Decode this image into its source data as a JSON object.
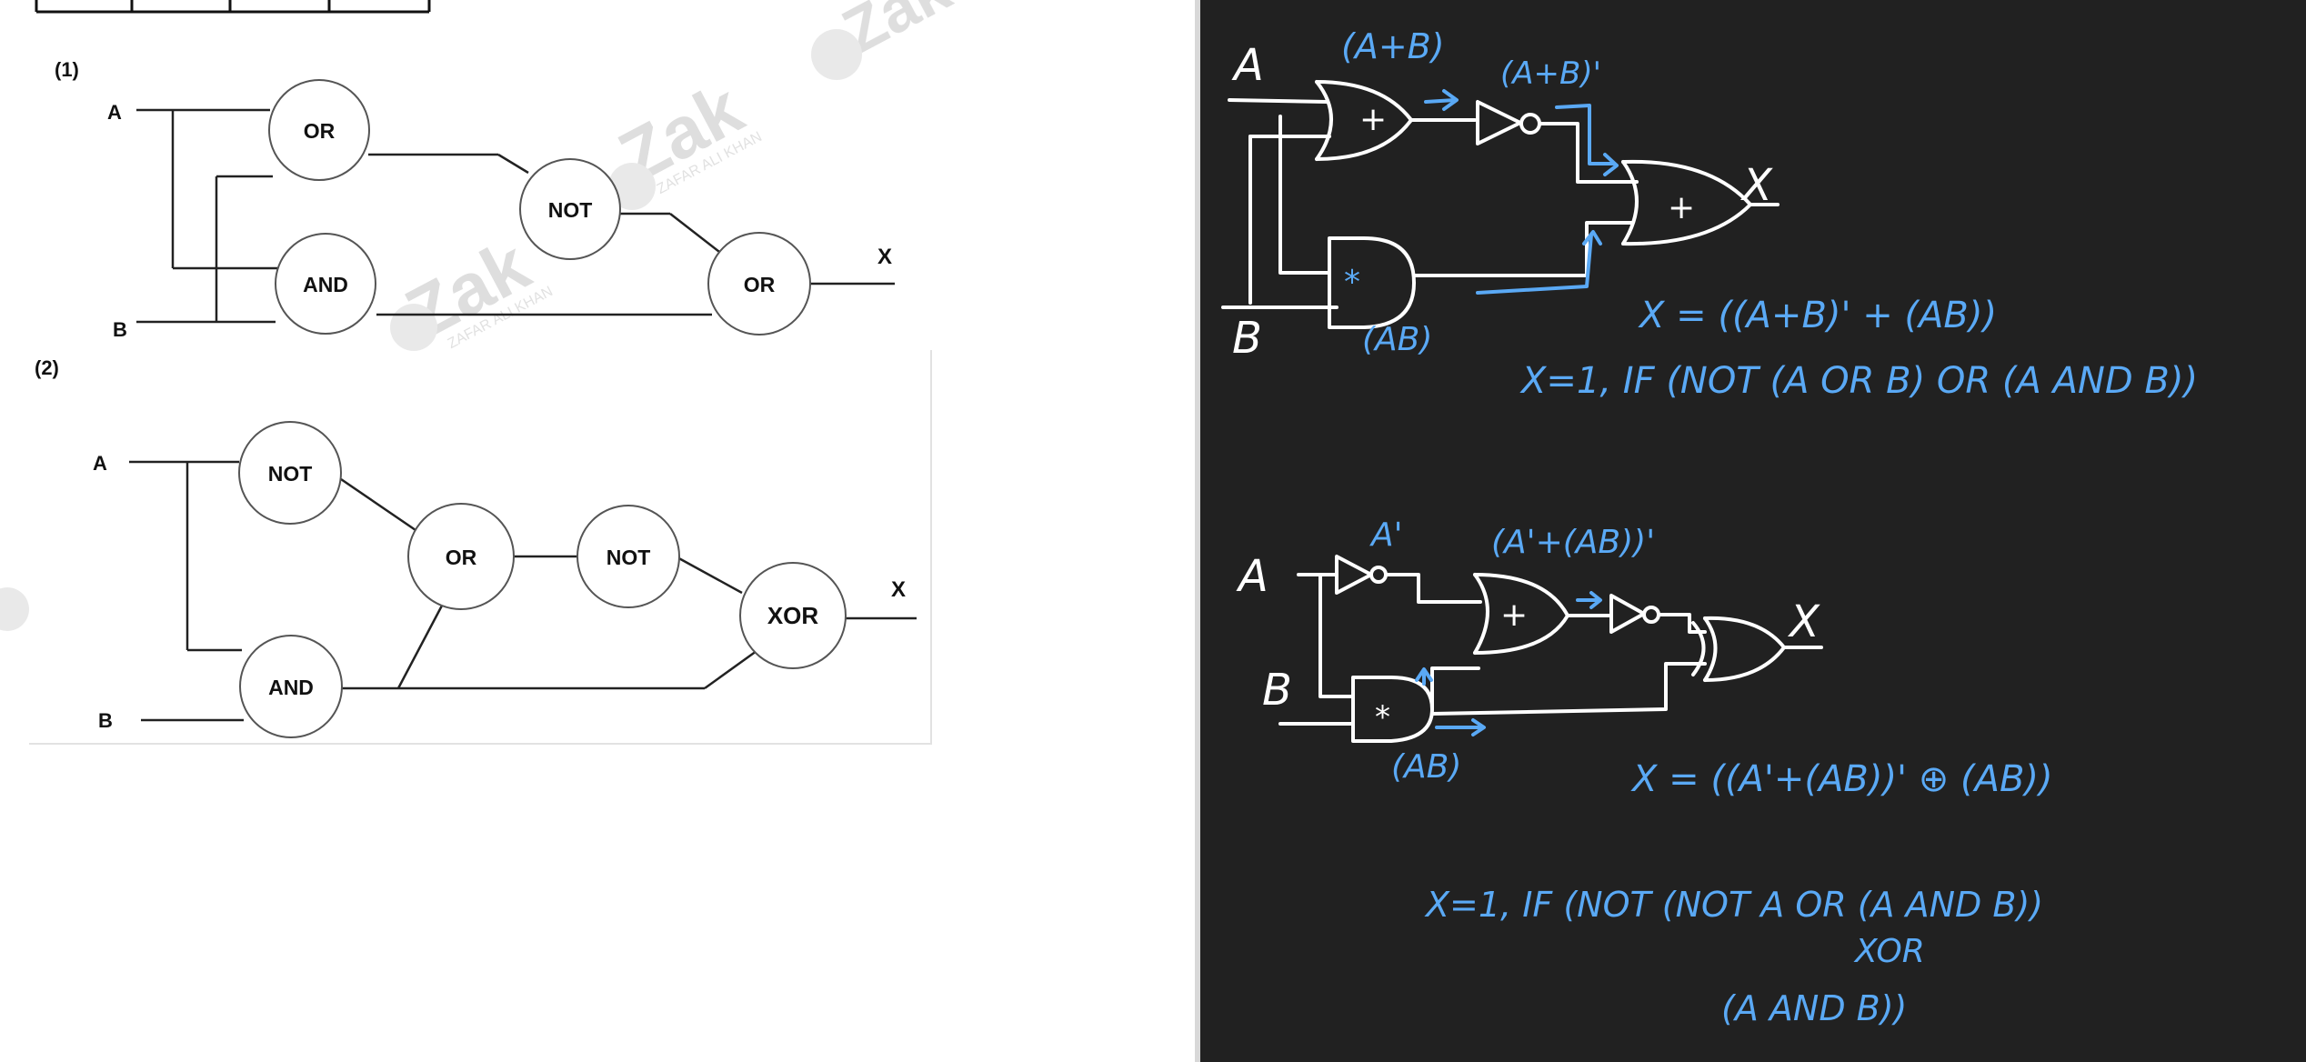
{
  "printed": {
    "circuit1": {
      "number": "(1)",
      "input_a": "A",
      "input_b": "B",
      "output": "X",
      "gates": {
        "g1": "OR",
        "g2": "AND",
        "g3": "NOT",
        "g4": "OR"
      }
    },
    "circuit2": {
      "number": "(2)",
      "input_a": "A",
      "input_b": "B",
      "output": "X",
      "gates": {
        "g1": "NOT",
        "g2": "AND",
        "g3": "OR",
        "g4": "NOT",
        "g5": "XOR"
      }
    },
    "watermark": {
      "brand": "Zak",
      "name": "ZAFAR ALI KHAN"
    }
  },
  "handwritten": {
    "c1": {
      "input_a": "A",
      "input_b": "B",
      "label_or": "(A+B)",
      "label_not": "(A+B)'",
      "label_and": "(AB)",
      "or_symbol": "+",
      "and_symbol": "*",
      "out_or_symbol": "+",
      "output": "X",
      "expression": "X = ((A+B)' + (AB))",
      "statement": "X=1, IF (NOT (A OR B) OR (A AND B))"
    },
    "c2": {
      "input_a": "A",
      "input_b": "B",
      "label_not_a": "A'",
      "label_or": "(A'+(AB))'",
      "label_and": "(AB)",
      "or_symbol": "+",
      "and_symbol": "*",
      "output": "X",
      "expression": "X = ((A'+(AB))' ⊕ (AB))",
      "statement_line1": "X=1, IF (NOT (NOT A  OR (A AND B))",
      "statement_line2": "XOR",
      "statement_line3": "(A  AND B))"
    }
  },
  "colors": {
    "ink": "#111111",
    "chalk": "#ffffff",
    "blue": "#5aa9f5",
    "board": "#212121"
  }
}
